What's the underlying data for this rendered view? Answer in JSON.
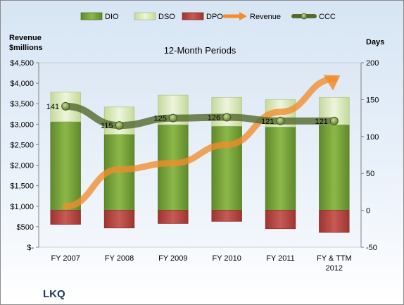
{
  "chart_data": {
    "type": "bar",
    "title": "12-Month Periods",
    "company": "LKQ",
    "categories": [
      [
        "FY 2007"
      ],
      [
        "FY 2008"
      ],
      [
        "FY 2009"
      ],
      [
        "FY 2010"
      ],
      [
        "FY 2011"
      ],
      [
        "FY & TTM",
        "2012"
      ]
    ],
    "left_axis": {
      "title_lines": [
        "Revenue",
        "$millions"
      ],
      "range": [
        0,
        4500
      ],
      "ticks": [
        0,
        500,
        1000,
        1500,
        2000,
        2500,
        3000,
        3500,
        4000,
        4500
      ],
      "tick_labels": [
        "$-",
        "$500",
        "$1,000",
        "$1,500",
        "$2,000",
        "$2,500",
        "$3,000",
        "$3,500",
        "$4,000",
        "$4,500"
      ]
    },
    "right_axis": {
      "title": "Days",
      "range": [
        -50,
        200
      ],
      "ticks": [
        -50,
        0,
        50,
        100,
        150,
        200
      ],
      "tick_labels": [
        "-50",
        "0",
        "50",
        "100",
        "150",
        "200"
      ]
    },
    "series": [
      {
        "name": "DIO",
        "kind": "stacked-bar",
        "axis": "right",
        "color": "#77a33a",
        "values": [
          120,
          103,
          116,
          114,
          113,
          116
        ]
      },
      {
        "name": "DSO",
        "kind": "stacked-bar",
        "axis": "right",
        "color": "#d6e6b4",
        "values": [
          40,
          37,
          40,
          39,
          37,
          37
        ]
      },
      {
        "name": "DPO",
        "kind": "stacked-bar",
        "axis": "right",
        "color": "#c0504d",
        "values": [
          -19,
          -24,
          -18,
          -15,
          -25,
          -30
        ]
      },
      {
        "name": "Revenue",
        "kind": "arrow-line",
        "axis": "left",
        "color": "#f28c2c",
        "values": [
          1000,
          1900,
          2050,
          2500,
          3300,
          4100
        ]
      },
      {
        "name": "CCC",
        "kind": "line-markers",
        "axis": "right",
        "color": "#556b2f",
        "values": [
          141,
          115,
          125,
          126,
          121,
          121
        ],
        "labels": [
          "141",
          "115",
          "125",
          "126",
          "121",
          "121"
        ]
      }
    ],
    "legend_position": "top",
    "grid": false
  }
}
